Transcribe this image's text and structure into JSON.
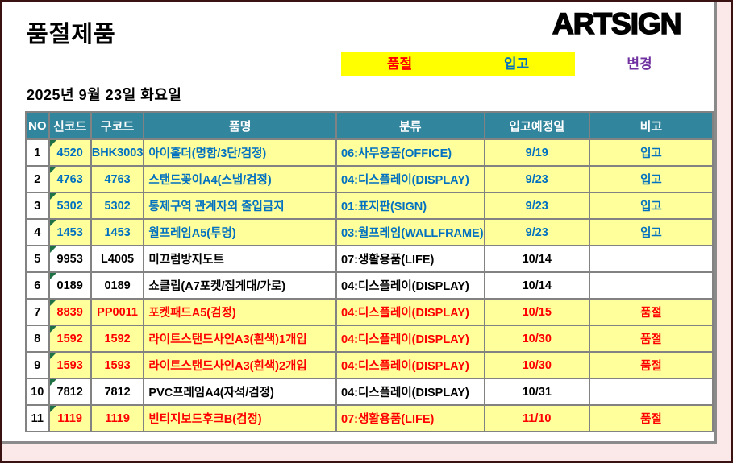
{
  "header": {
    "title": "품절제품",
    "logo": "ARTSIGN",
    "date": "2025년 9월 23일 화요일"
  },
  "legend": {
    "soldout_label": "품절",
    "incoming_label": "입고",
    "changed_label": "변경"
  },
  "colors": {
    "header_bg": "#31859C",
    "highlight_row_bg": "#FFFF9B",
    "legend_bg": "#FFFF00",
    "incoming_text": "#0070C0",
    "soldout_text": "#FF0000",
    "changed_text": "#7030A0",
    "grid_line": "#828282",
    "frame_border": "#3B1212",
    "outer_strip": "#FBE9E9",
    "comment_flag": "#1E7145"
  },
  "table": {
    "headers": [
      "NO",
      "신코드",
      "구코드",
      "품명",
      "분류",
      "입고예정일",
      "비고"
    ],
    "rows": [
      {
        "no": "1",
        "new_code": "4520",
        "old_code": "BHK3003",
        "name": "아이홀더(명함/3단/검정)",
        "category": "06:사무용품(OFFICE)",
        "due_date": "9/19",
        "note": "입고",
        "style": "incoming"
      },
      {
        "no": "2",
        "new_code": "4763",
        "old_code": "4763",
        "name": "스탠드꽂이A4(스냅/검정)",
        "category": "04:디스플레이(DISPLAY)",
        "due_date": "9/23",
        "note": "입고",
        "style": "incoming"
      },
      {
        "no": "3",
        "new_code": "5302",
        "old_code": "5302",
        "name": "통제구역 관계자외 출입금지",
        "category": "01:표지판(SIGN)",
        "due_date": "9/23",
        "note": "입고",
        "style": "incoming"
      },
      {
        "no": "4",
        "new_code": "1453",
        "old_code": "1453",
        "name": "월프레임A5(투명)",
        "category": "03:월프레임(WALLFRAME)",
        "due_date": "9/23",
        "note": "입고",
        "style": "incoming"
      },
      {
        "no": "5",
        "new_code": "9953",
        "old_code": "L4005",
        "name": "미끄럼방지도트",
        "category": "07:생활용품(LIFE)",
        "due_date": "10/14",
        "note": "",
        "style": "plain"
      },
      {
        "no": "6",
        "new_code": "0189",
        "old_code": "0189",
        "name": "쇼클립(A7포켓/집게대/가로)",
        "category": "04:디스플레이(DISPLAY)",
        "due_date": "10/14",
        "note": "",
        "style": "plain"
      },
      {
        "no": "7",
        "new_code": "8839",
        "old_code": "PP0011",
        "name": "포켓패드A5(검정)",
        "category": "04:디스플레이(DISPLAY)",
        "due_date": "10/15",
        "note": "품절",
        "style": "soldout"
      },
      {
        "no": "8",
        "new_code": "1592",
        "old_code": "1592",
        "name": "라이트스탠드사인A3(흰색)1개입",
        "category": "04:디스플레이(DISPLAY)",
        "due_date": "10/30",
        "note": "품절",
        "style": "soldout"
      },
      {
        "no": "9",
        "new_code": "1593",
        "old_code": "1593",
        "name": "라이트스탠드사인A3(흰색)2개입",
        "category": "04:디스플레이(DISPLAY)",
        "due_date": "10/30",
        "note": "품절",
        "style": "soldout"
      },
      {
        "no": "10",
        "new_code": "7812",
        "old_code": "7812",
        "name": "PVC프레임A4(자석/검정)",
        "category": "04:디스플레이(DISPLAY)",
        "due_date": "10/31",
        "note": "",
        "style": "plain"
      },
      {
        "no": "11",
        "new_code": "1119",
        "old_code": "1119",
        "name": "빈티지보드후크B(검정)",
        "category": "07:생활용품(LIFE)",
        "due_date": "11/10",
        "note": "품절",
        "style": "soldout"
      }
    ]
  }
}
